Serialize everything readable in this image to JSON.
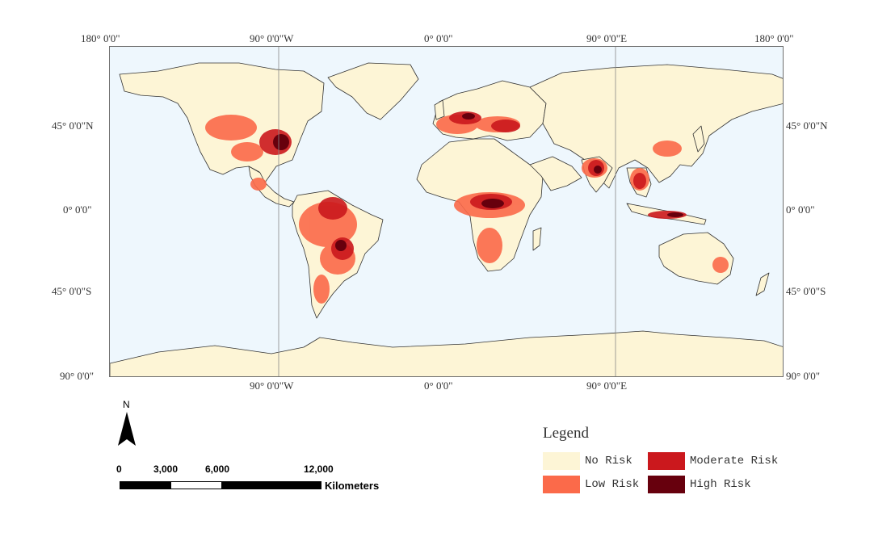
{
  "axes": {
    "top": [
      "180° 0'0\"",
      "90° 0'0\"W",
      "0° 0'0\"",
      "90° 0'0\"E",
      "180° 0'0\""
    ],
    "bottom": [
      "90° 0'0\"W",
      "0° 0'0\"",
      "90° 0'0\"E"
    ],
    "left": [
      "45° 0'0\"N",
      "0° 0'0\"",
      "45° 0'0\"S",
      "90° 0'0\""
    ],
    "right": [
      "45° 0'0\"N",
      "0° 0'0\"",
      "45° 0'0\"S",
      "90° 0'0\""
    ]
  },
  "north_arrow": {
    "label": "N"
  },
  "scale_bar": {
    "ticks": [
      "0",
      "3,000",
      "6,000",
      "12,000"
    ],
    "unit": "Kilometers"
  },
  "legend": {
    "title": "Legend",
    "items": [
      {
        "label": "No Risk",
        "color": "#fdf5d6"
      },
      {
        "label": "Low Risk",
        "color": "#fb6a4a"
      },
      {
        "label": "Moderate Risk",
        "color": "#cb181d"
      },
      {
        "label": "High Risk",
        "color": "#67000d"
      }
    ]
  },
  "colors": {
    "ocean": "#eef7fd",
    "land": "#fdf5d6",
    "low": "#fb6a4a",
    "moderate": "#cb181d",
    "high": "#67000d"
  }
}
